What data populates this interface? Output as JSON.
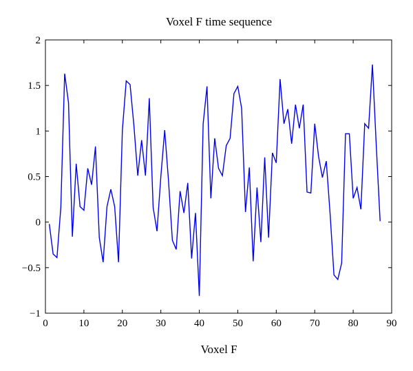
{
  "chart_data": {
    "type": "line",
    "title": "Voxel F time sequence",
    "xlabel": "Voxel F",
    "ylabel": "",
    "xlim": [
      0,
      90
    ],
    "ylim": [
      -1,
      2
    ],
    "xticks": [
      0,
      10,
      20,
      30,
      40,
      50,
      60,
      70,
      80,
      90
    ],
    "yticks": [
      2,
      1.5,
      1,
      0.5,
      0,
      -0.5,
      -1
    ],
    "grid": false,
    "line_color": "#0000ee",
    "series": [
      {
        "x": [
          1,
          2,
          3,
          4,
          5,
          6,
          7,
          8,
          9,
          10,
          11,
          12,
          13,
          14,
          15,
          16,
          17,
          18,
          19,
          20,
          21,
          22,
          23,
          24,
          25,
          26,
          27,
          28,
          29,
          30,
          31,
          32,
          33,
          34,
          35,
          36,
          37,
          38,
          39,
          40,
          41,
          42,
          43,
          44,
          45,
          46,
          47,
          48,
          49,
          50,
          51,
          52,
          53,
          54,
          55,
          56,
          57,
          58,
          59,
          60,
          61,
          62,
          63,
          64,
          65,
          66,
          67,
          68,
          69,
          70,
          71,
          72,
          73,
          74,
          75,
          76,
          77,
          78,
          79,
          80,
          81,
          82,
          83,
          84,
          85,
          86,
          87
        ],
        "values": [
          -0.02,
          -0.35,
          -0.39,
          0.16,
          1.63,
          1.31,
          -0.16,
          0.64,
          0.17,
          0.13,
          0.59,
          0.41,
          0.83,
          -0.17,
          -0.44,
          0.17,
          0.36,
          0.17,
          -0.44,
          1.01,
          1.55,
          1.51,
          1.06,
          0.51,
          0.9,
          0.51,
          1.36,
          0.16,
          -0.1,
          0.5,
          1.01,
          0.45,
          -0.2,
          -0.3,
          0.34,
          0.1,
          0.43,
          -0.4,
          0.1,
          -0.81,
          1.08,
          1.49,
          0.26,
          0.92,
          0.59,
          0.51,
          0.84,
          0.92,
          1.41,
          1.49,
          1.25,
          0.11,
          0.6,
          -0.43,
          0.38,
          -0.22,
          0.71,
          -0.17,
          0.76,
          0.65,
          1.57,
          1.08,
          1.24,
          0.86,
          1.29,
          1.03,
          1.29,
          0.33,
          0.32,
          1.08,
          0.72,
          0.49,
          0.67,
          0.09,
          -0.58,
          -0.63,
          -0.45,
          0.97,
          0.97,
          0.26,
          0.38,
          0.14,
          1.08,
          1.03,
          1.73,
          0.84,
          0.01
        ]
      }
    ]
  }
}
